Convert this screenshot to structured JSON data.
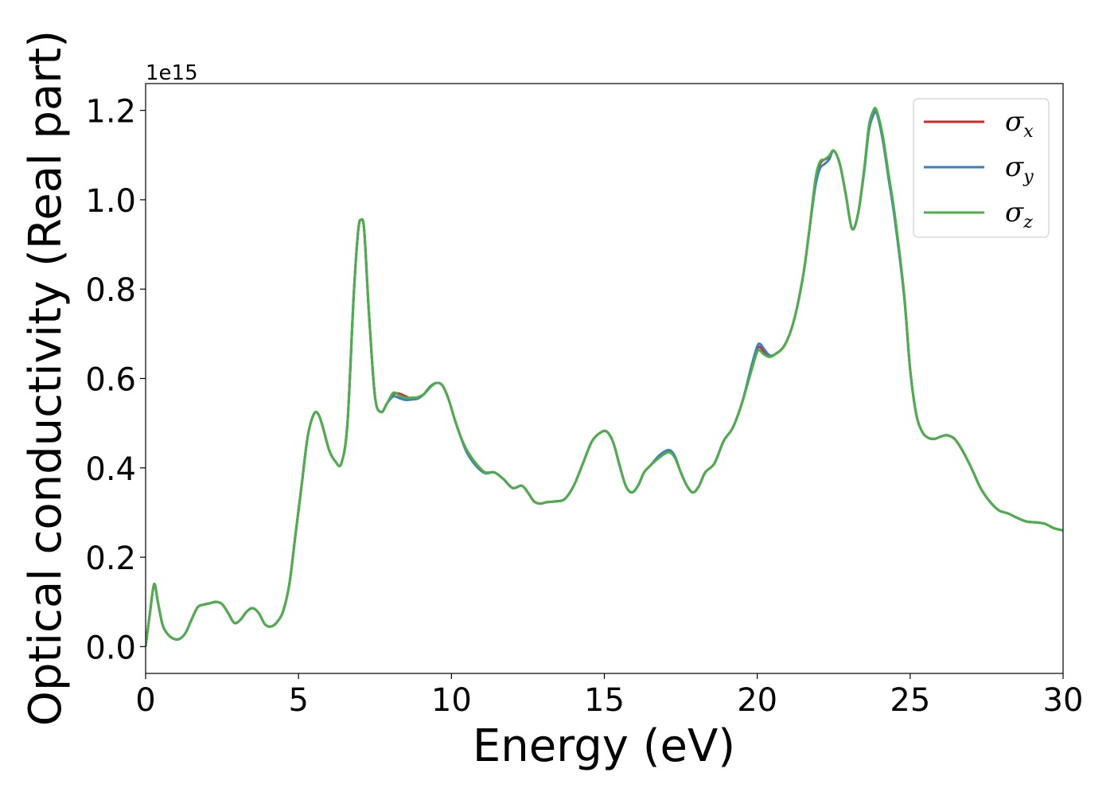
{
  "chart_data": {
    "type": "line",
    "xlabel": "Energy (eV)",
    "ylabel": "Optical conductivity (Real part)",
    "y_offset_label": "1e15",
    "xlim": [
      0,
      30
    ],
    "ylim": [
      -0.06,
      1.26
    ],
    "x_ticks": [
      0,
      5,
      10,
      15,
      20,
      25,
      30
    ],
    "x_tick_labels": [
      "0",
      "5",
      "10",
      "15",
      "20",
      "25",
      "30"
    ],
    "y_ticks": [
      0.0,
      0.2,
      0.4,
      0.6,
      0.8,
      1.0,
      1.2
    ],
    "y_tick_labels": [
      "0.0",
      "0.2",
      "0.4",
      "0.6",
      "0.8",
      "1.0",
      "1.2"
    ],
    "grid": false,
    "legend_position": "top-right",
    "x": [
      0,
      0.15,
      0.28,
      0.4,
      0.55,
      0.7,
      0.9,
      1.1,
      1.3,
      1.5,
      1.7,
      1.9,
      2.1,
      2.3,
      2.5,
      2.7,
      2.9,
      3.1,
      3.3,
      3.5,
      3.7,
      3.9,
      4.1,
      4.3,
      4.5,
      4.7,
      4.9,
      5.1,
      5.3,
      5.5,
      5.65,
      5.8,
      6.0,
      6.2,
      6.4,
      6.6,
      6.8,
      6.95,
      7.05,
      7.15,
      7.3,
      7.5,
      7.7,
      7.9,
      8.1,
      8.3,
      8.5,
      8.7,
      8.9,
      9.1,
      9.3,
      9.5,
      9.7,
      9.9,
      10.1,
      10.3,
      10.5,
      10.8,
      11.1,
      11.4,
      11.7,
      12.0,
      12.3,
      12.5,
      12.7,
      12.9,
      13.1,
      13.4,
      13.7,
      14.0,
      14.3,
      14.6,
      14.9,
      15.1,
      15.3,
      15.5,
      15.7,
      15.9,
      16.1,
      16.3,
      16.5,
      16.8,
      17.1,
      17.3,
      17.5,
      17.7,
      17.9,
      18.1,
      18.3,
      18.6,
      18.9,
      19.2,
      19.5,
      19.8,
      20.0,
      20.1,
      20.2,
      20.4,
      20.6,
      20.9,
      21.2,
      21.5,
      21.7,
      21.9,
      22.05,
      22.2,
      22.35,
      22.5,
      22.7,
      22.9,
      23.1,
      23.3,
      23.5,
      23.65,
      23.8,
      23.9,
      24.1,
      24.3,
      24.5,
      24.8,
      25.0,
      25.2,
      25.4,
      25.6,
      25.8,
      26.0,
      26.2,
      26.45,
      26.7,
      27.0,
      27.3,
      27.6,
      27.9,
      28.2,
      28.5,
      28.8,
      29.1,
      29.4,
      29.7,
      30.0
    ],
    "series": [
      {
        "name": "σx",
        "color": "#d62728",
        "values": [
          0,
          0.08,
          0.14,
          0.1,
          0.05,
          0.03,
          0.018,
          0.017,
          0.03,
          0.06,
          0.088,
          0.094,
          0.097,
          0.1,
          0.095,
          0.075,
          0.053,
          0.06,
          0.078,
          0.086,
          0.075,
          0.05,
          0.045,
          0.055,
          0.08,
          0.14,
          0.25,
          0.36,
          0.47,
          0.52,
          0.52,
          0.49,
          0.44,
          0.415,
          0.41,
          0.5,
          0.78,
          0.93,
          0.955,
          0.93,
          0.75,
          0.56,
          0.525,
          0.545,
          0.565,
          0.566,
          0.56,
          0.555,
          0.558,
          0.565,
          0.58,
          0.59,
          0.585,
          0.555,
          0.51,
          0.47,
          0.44,
          0.41,
          0.39,
          0.39,
          0.375,
          0.355,
          0.36,
          0.345,
          0.325,
          0.32,
          0.323,
          0.325,
          0.33,
          0.36,
          0.41,
          0.46,
          0.48,
          0.48,
          0.455,
          0.405,
          0.36,
          0.345,
          0.36,
          0.39,
          0.405,
          0.425,
          0.438,
          0.425,
          0.39,
          0.36,
          0.345,
          0.36,
          0.39,
          0.41,
          0.46,
          0.49,
          0.545,
          0.62,
          0.665,
          0.67,
          0.66,
          0.65,
          0.655,
          0.675,
          0.73,
          0.83,
          0.93,
          1.04,
          1.08,
          1.09,
          1.095,
          1.11,
          1.08,
          1.01,
          0.935,
          0.97,
          1.07,
          1.16,
          1.195,
          1.2,
          1.14,
          1.05,
          0.96,
          0.79,
          0.62,
          0.52,
          0.48,
          0.467,
          0.465,
          0.47,
          0.473,
          0.465,
          0.44,
          0.4,
          0.355,
          0.325,
          0.305,
          0.298,
          0.288,
          0.28,
          0.278,
          0.275,
          0.265,
          0.26
        ]
      },
      {
        "name": "σy",
        "color": "#3c7ebf",
        "values": [
          0,
          0.08,
          0.14,
          0.1,
          0.05,
          0.03,
          0.018,
          0.017,
          0.03,
          0.06,
          0.088,
          0.094,
          0.097,
          0.1,
          0.095,
          0.075,
          0.053,
          0.06,
          0.078,
          0.086,
          0.075,
          0.05,
          0.045,
          0.055,
          0.08,
          0.14,
          0.25,
          0.36,
          0.47,
          0.52,
          0.52,
          0.49,
          0.44,
          0.415,
          0.41,
          0.5,
          0.78,
          0.93,
          0.955,
          0.93,
          0.75,
          0.56,
          0.525,
          0.545,
          0.56,
          0.556,
          0.552,
          0.553,
          0.555,
          0.565,
          0.582,
          0.59,
          0.585,
          0.555,
          0.51,
          0.47,
          0.435,
          0.405,
          0.388,
          0.39,
          0.375,
          0.355,
          0.36,
          0.345,
          0.325,
          0.32,
          0.323,
          0.325,
          0.33,
          0.36,
          0.41,
          0.46,
          0.48,
          0.48,
          0.455,
          0.405,
          0.36,
          0.345,
          0.36,
          0.39,
          0.405,
          0.428,
          0.44,
          0.427,
          0.39,
          0.36,
          0.345,
          0.36,
          0.39,
          0.41,
          0.46,
          0.49,
          0.545,
          0.625,
          0.672,
          0.677,
          0.668,
          0.652,
          0.655,
          0.675,
          0.73,
          0.83,
          0.93,
          1.03,
          1.07,
          1.08,
          1.09,
          1.11,
          1.08,
          1.01,
          0.935,
          0.97,
          1.065,
          1.155,
          1.19,
          1.195,
          1.135,
          1.045,
          0.955,
          0.785,
          0.62,
          0.52,
          0.48,
          0.467,
          0.465,
          0.47,
          0.473,
          0.465,
          0.44,
          0.4,
          0.355,
          0.325,
          0.305,
          0.298,
          0.288,
          0.28,
          0.278,
          0.275,
          0.265,
          0.26
        ]
      },
      {
        "name": "σz",
        "color": "#4daf4a",
        "values": [
          0,
          0.08,
          0.14,
          0.1,
          0.05,
          0.03,
          0.018,
          0.017,
          0.03,
          0.06,
          0.088,
          0.094,
          0.097,
          0.1,
          0.095,
          0.075,
          0.053,
          0.06,
          0.078,
          0.086,
          0.075,
          0.05,
          0.045,
          0.055,
          0.08,
          0.14,
          0.25,
          0.36,
          0.47,
          0.52,
          0.52,
          0.49,
          0.44,
          0.415,
          0.41,
          0.5,
          0.78,
          0.93,
          0.955,
          0.93,
          0.75,
          0.56,
          0.525,
          0.545,
          0.568,
          0.562,
          0.557,
          0.557,
          0.558,
          0.565,
          0.58,
          0.59,
          0.585,
          0.555,
          0.51,
          0.47,
          0.44,
          0.41,
          0.39,
          0.39,
          0.375,
          0.355,
          0.36,
          0.345,
          0.325,
          0.32,
          0.323,
          0.325,
          0.33,
          0.36,
          0.41,
          0.46,
          0.48,
          0.48,
          0.455,
          0.405,
          0.36,
          0.345,
          0.36,
          0.39,
          0.405,
          0.423,
          0.435,
          0.423,
          0.39,
          0.36,
          0.345,
          0.36,
          0.39,
          0.41,
          0.46,
          0.49,
          0.545,
          0.615,
          0.66,
          0.662,
          0.655,
          0.648,
          0.655,
          0.675,
          0.73,
          0.83,
          0.93,
          1.045,
          1.085,
          1.09,
          1.098,
          1.11,
          1.08,
          1.01,
          0.935,
          0.97,
          1.07,
          1.165,
          1.2,
          1.2,
          1.145,
          1.055,
          0.965,
          0.79,
          0.62,
          0.52,
          0.48,
          0.467,
          0.465,
          0.47,
          0.473,
          0.465,
          0.44,
          0.4,
          0.355,
          0.325,
          0.305,
          0.298,
          0.288,
          0.28,
          0.278,
          0.275,
          0.265,
          0.26
        ]
      }
    ]
  },
  "legend": {
    "items": [
      {
        "symbol": "σ",
        "subscript": "x",
        "color": "#d62728"
      },
      {
        "symbol": "σ",
        "subscript": "y",
        "color": "#3c7ebf"
      },
      {
        "symbol": "σ",
        "subscript": "z",
        "color": "#4daf4a"
      }
    ]
  }
}
